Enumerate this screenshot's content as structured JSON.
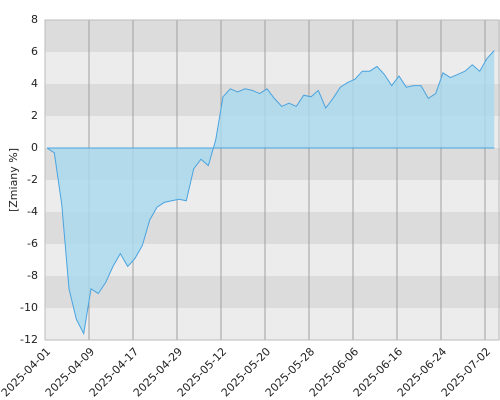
{
  "chart_data": {
    "type": "area",
    "y_label": "[Zmiany %]",
    "categories": [
      "2025-04-01",
      null,
      null,
      null,
      null,
      null,
      "2025-04-09",
      null,
      null,
      null,
      null,
      null,
      "2025-04-17",
      null,
      null,
      null,
      null,
      null,
      "2025-04-29",
      null,
      null,
      null,
      null,
      null,
      "2025-05-12",
      null,
      null,
      null,
      null,
      null,
      "2025-05-20",
      null,
      null,
      null,
      null,
      null,
      "2025-05-28",
      null,
      null,
      null,
      null,
      null,
      "2025-06-06",
      null,
      null,
      null,
      null,
      null,
      "2025-06-16",
      null,
      null,
      null,
      null,
      null,
      "2025-06-24",
      null,
      null,
      null,
      null,
      null,
      "2025-07-02",
      null
    ],
    "values": [
      0,
      -0.3,
      -3.5,
      -8.8,
      -10.7,
      -11.6,
      -8.8,
      -9.1,
      -8.4,
      -7.4,
      -6.6,
      -7.4,
      -6.9,
      -6.1,
      -4.5,
      -3.7,
      -3.4,
      -3.3,
      -3.2,
      -3.3,
      -1.3,
      -0.7,
      -1.1,
      0.5,
      3.2,
      3.7,
      3.5,
      3.7,
      3.6,
      3.4,
      3.7,
      3.1,
      2.6,
      2.8,
      2.6,
      3.3,
      3.2,
      3.6,
      2.5,
      3.1,
      3.8,
      4.1,
      4.3,
      4.8,
      4.8,
      5.1,
      4.6,
      3.9,
      4.5,
      3.8,
      3.9,
      3.9,
      3.1,
      3.4,
      4.7,
      4.4,
      4.6,
      4.8,
      5.2,
      4.8,
      5.6,
      6.1
    ],
    "color": "#4aa3df",
    "fill_color": "#a9d9ee",
    "ylim": [
      -12,
      8
    ],
    "yticks": [
      -12,
      -10,
      -8,
      -6,
      -4,
      -2,
      0,
      2,
      4,
      6,
      8
    ],
    "grid": true
  }
}
